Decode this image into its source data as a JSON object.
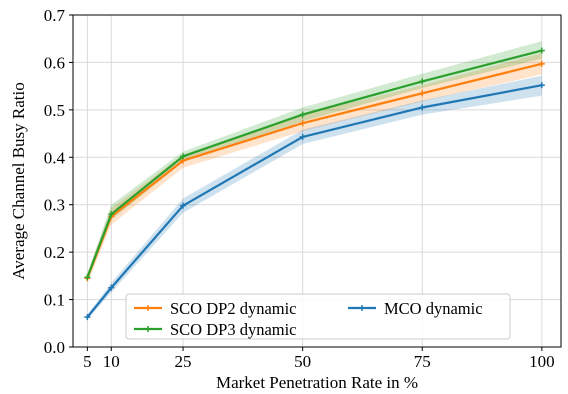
{
  "chart_data": {
    "type": "line",
    "xlabel": "Market Penetration Rate in %",
    "ylabel": "Average Channel Busy Ratio",
    "x": [
      5,
      10,
      25,
      50,
      75,
      100
    ],
    "xticks": [
      5,
      10,
      25,
      50,
      75,
      100
    ],
    "xlim": [
      2,
      104
    ],
    "ylim": [
      0.0,
      0.7
    ],
    "yticks": [
      "0.0",
      "0.1",
      "0.2",
      "0.3",
      "0.4",
      "0.5",
      "0.6",
      "0.7"
    ],
    "grid": true,
    "legend_position": "lower-center",
    "series": [
      {
        "name": "SCO DP2 dynamic",
        "color": "#ff7f0e",
        "values": [
          0.145,
          0.275,
          0.393,
          0.472,
          0.535,
          0.597
        ],
        "band_low": [
          0.135,
          0.258,
          0.378,
          0.455,
          0.518,
          0.575
        ],
        "band_high": [
          0.155,
          0.293,
          0.405,
          0.49,
          0.552,
          0.62
        ]
      },
      {
        "name": "SCO DP3 dynamic",
        "color": "#2ca02c",
        "values": [
          0.147,
          0.28,
          0.402,
          0.49,
          0.56,
          0.625
        ],
        "band_low": [
          0.14,
          0.268,
          0.39,
          0.476,
          0.546,
          0.608
        ],
        "band_high": [
          0.155,
          0.3,
          0.412,
          0.505,
          0.576,
          0.645
        ]
      },
      {
        "name": "MCO dynamic",
        "color": "#1f77b4",
        "values": [
          0.063,
          0.125,
          0.298,
          0.443,
          0.505,
          0.552
        ],
        "band_low": [
          0.058,
          0.115,
          0.283,
          0.428,
          0.49,
          0.53
        ],
        "band_high": [
          0.068,
          0.135,
          0.313,
          0.458,
          0.52,
          0.572
        ]
      }
    ]
  }
}
